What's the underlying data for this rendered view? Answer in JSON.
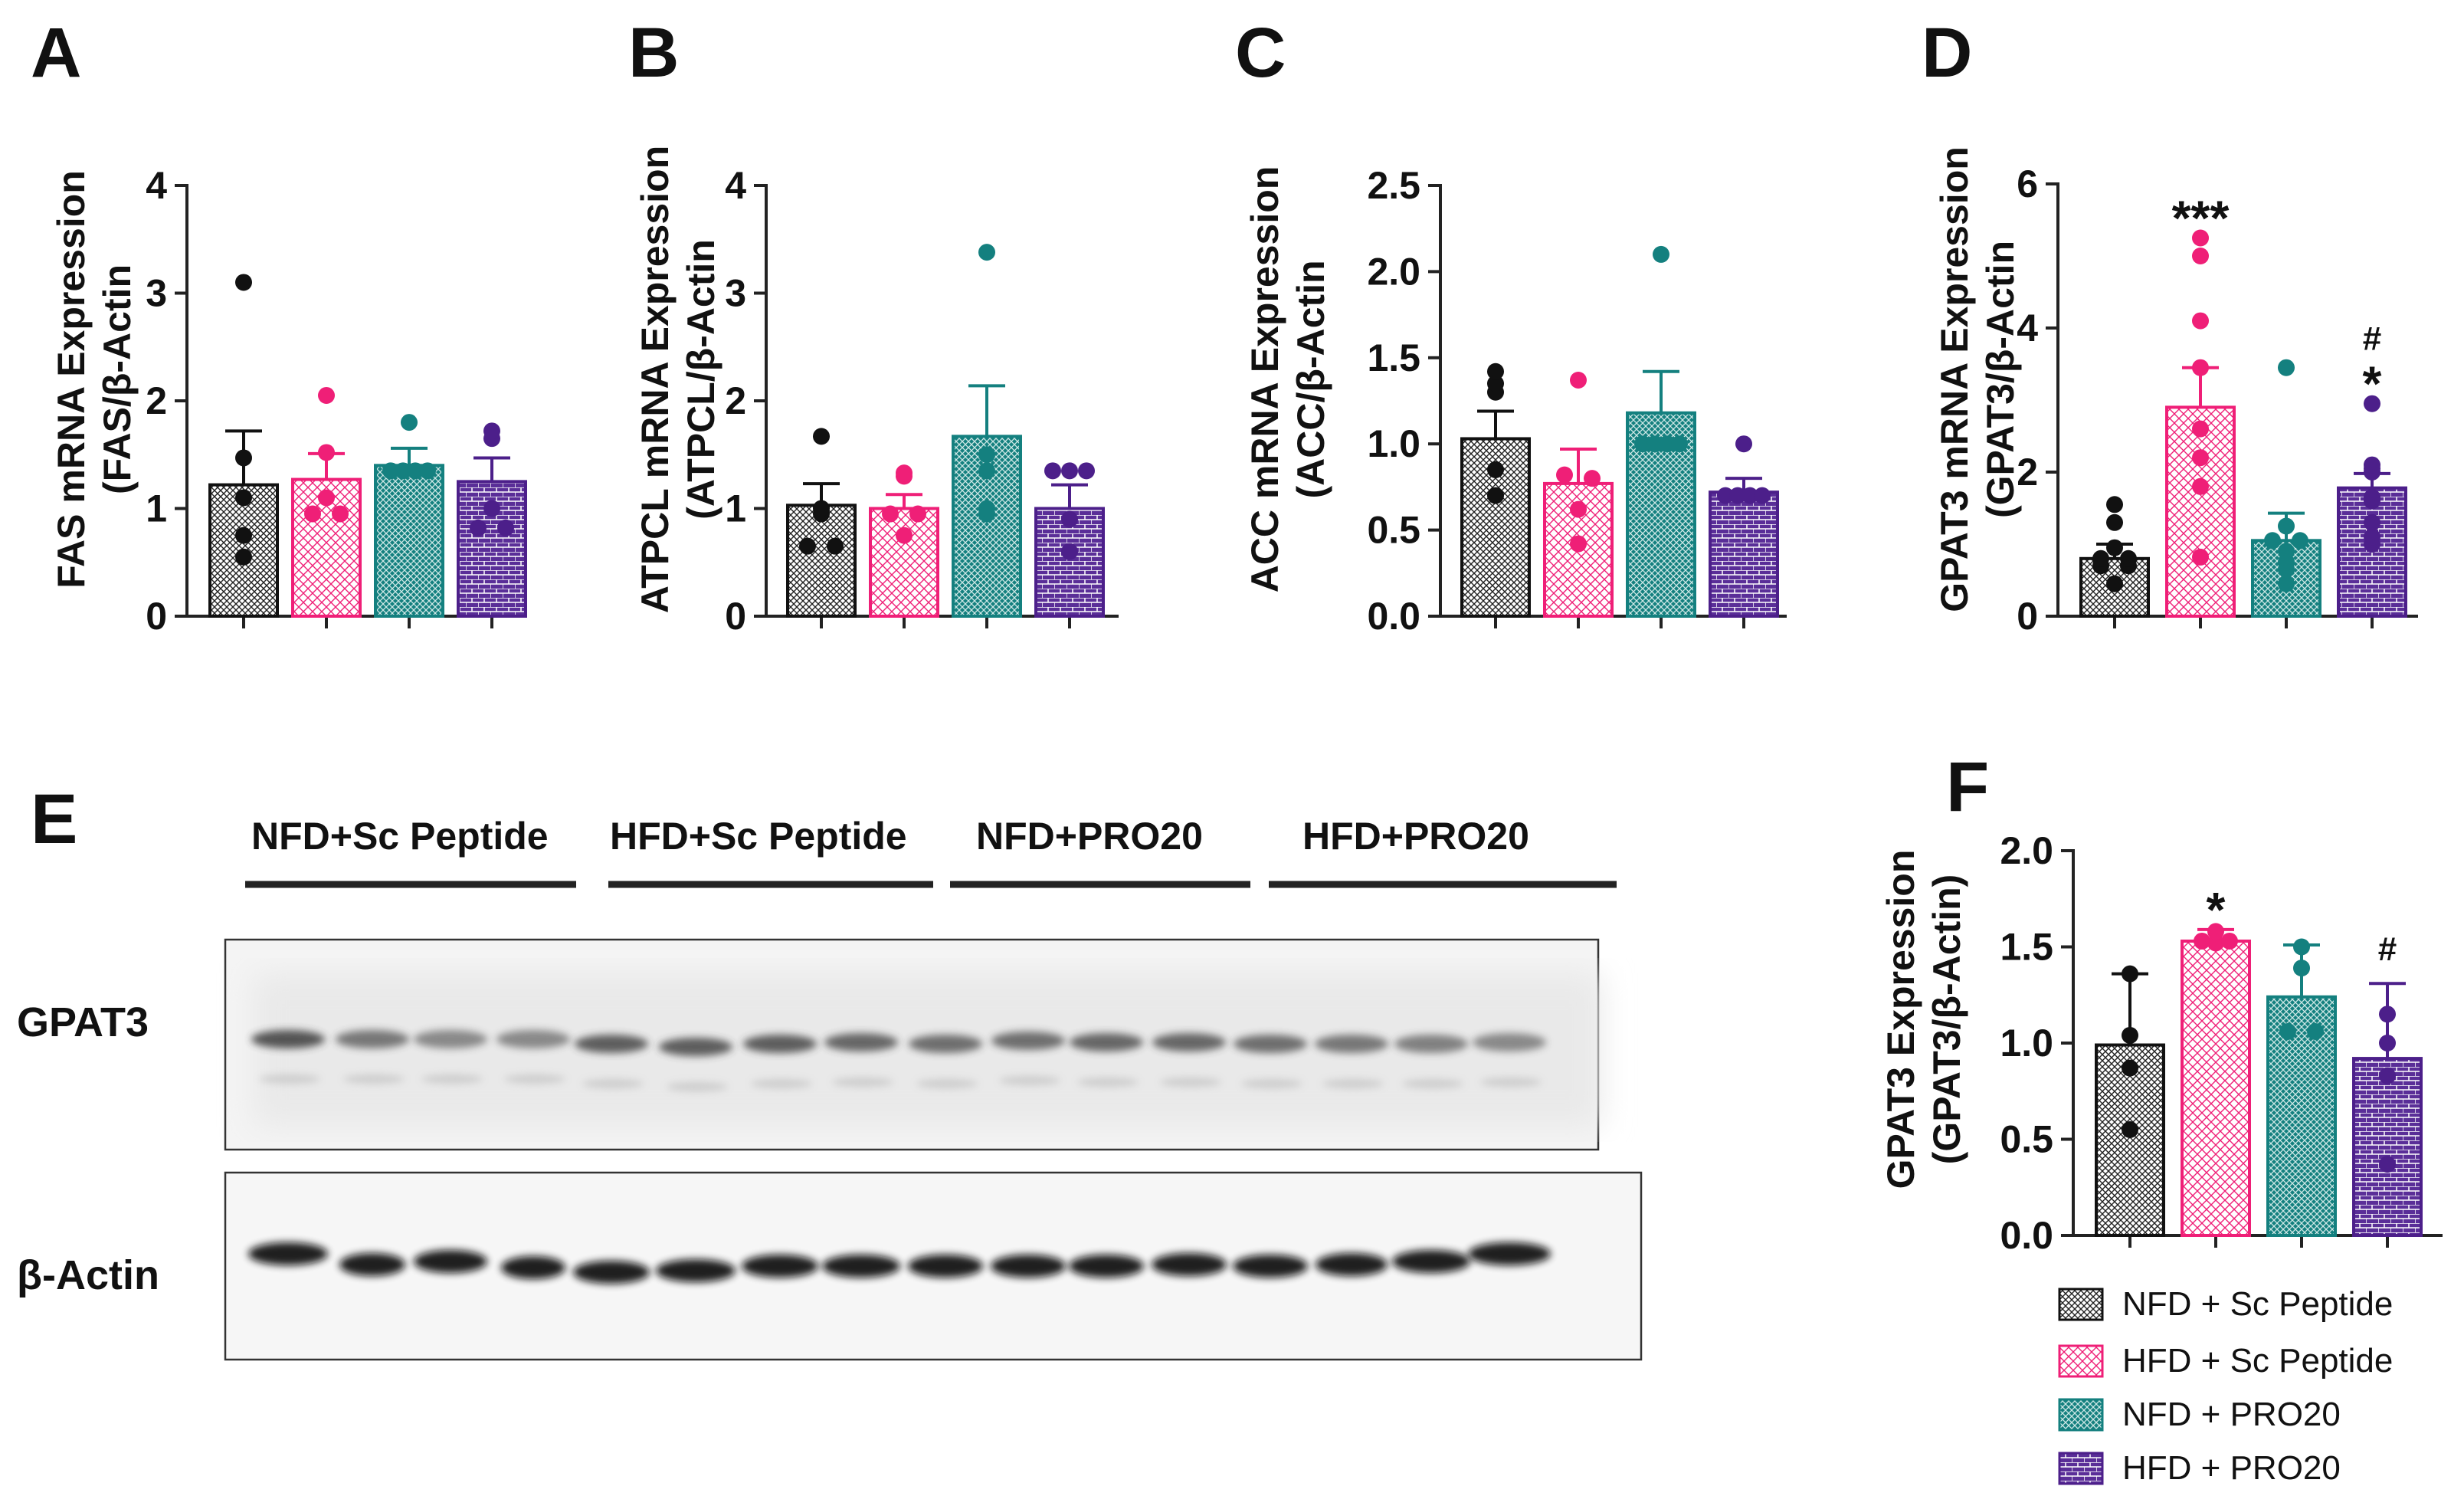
{
  "groups": [
    "NFD + Sc Peptide",
    "HFD + Sc Peptide",
    "NFD + PRO20",
    "HFD + PRO20"
  ],
  "colors": {
    "NFD_Sc": "#111111",
    "HFD_Sc": "#ef1f77",
    "NFD_PRO20": "#14807f",
    "HFD_PRO20": "#4c1f8a"
  },
  "panels": {
    "A": {
      "letter": "A",
      "ylabel1": "FAS mRNA Expression",
      "ylabel2": "(FAS/β-Actin"
    },
    "B": {
      "letter": "B",
      "ylabel1": "ATPCL mRNA Expression",
      "ylabel2": "(ATPCL/β-Actin"
    },
    "C": {
      "letter": "C",
      "ylabel1": "ACC mRNA Expression",
      "ylabel2": "(ACC/β-Actin"
    },
    "D": {
      "letter": "D",
      "ylabel1": "GPAT3 mRNA Expression",
      "ylabel2": "(GPAT3/β-Actin"
    },
    "E": {
      "letter": "E"
    },
    "F": {
      "letter": "F",
      "ylabel1": "GPAT3 Expression",
      "ylabel2": "(GPAT3/β-Actin)"
    }
  },
  "blot": {
    "lane_groups": [
      "NFD+Sc Peptide",
      "HFD+Sc Peptide",
      "NFD+PRO20",
      "HFD+PRO20"
    ],
    "rows": [
      "GPAT3",
      "β-Actin"
    ]
  },
  "chart_data": [
    {
      "type": "bar",
      "panel": "A",
      "ylabel": "FAS mRNA Expression (FAS/β-Actin",
      "ylim": [
        0,
        4
      ],
      "yticks": [
        "0",
        "1",
        "2",
        "3",
        "4"
      ],
      "categories": [
        "NFD + Sc Peptide",
        "HFD + Sc Peptide",
        "NFD + PRO20",
        "HFD + PRO20"
      ],
      "means": [
        1.22,
        1.27,
        1.4,
        1.25
      ],
      "sem": [
        0.5,
        0.24,
        0.16,
        0.22
      ],
      "points": [
        [
          3.1,
          1.47,
          1.1,
          0.75,
          0.55
        ],
        [
          2.05,
          1.52,
          1.1,
          0.95,
          0.95
        ],
        [
          1.8,
          1.35,
          1.35,
          1.35,
          1.35
        ],
        [
          1.72,
          1.65,
          1.0,
          0.82,
          0.82
        ]
      ],
      "annotations": [
        "",
        "",
        "",
        ""
      ]
    },
    {
      "type": "bar",
      "panel": "B",
      "ylabel": "ATPCL mRNA Expression (ATPCL/β-Actin",
      "ylim": [
        0,
        4
      ],
      "yticks": [
        "0",
        "1",
        "2",
        "3",
        "4"
      ],
      "categories": [
        "NFD + Sc Peptide",
        "HFD + Sc Peptide",
        "NFD + PRO20",
        "HFD + PRO20"
      ],
      "means": [
        1.03,
        1.0,
        1.67,
        1.0
      ],
      "sem": [
        0.2,
        0.13,
        0.47,
        0.22
      ],
      "points": [
        [
          1.67,
          1.0,
          0.95,
          0.65,
          0.65
        ],
        [
          1.33,
          1.3,
          0.95,
          0.95,
          0.75
        ],
        [
          3.38,
          1.5,
          1.35,
          1.0,
          0.95
        ],
        [
          1.35,
          1.35,
          1.35,
          0.9,
          0.6
        ]
      ],
      "annotations": [
        "",
        "",
        "",
        ""
      ]
    },
    {
      "type": "bar",
      "panel": "C",
      "ylabel": "ACC mRNA Expression (ACC/β-Actin",
      "ylim": [
        0,
        2.5
      ],
      "yticks": [
        "0.0",
        "0.5",
        "1.0",
        "1.5",
        "2.0",
        "2.5"
      ],
      "categories": [
        "NFD + Sc Peptide",
        "HFD + Sc Peptide",
        "NFD + PRO20",
        "HFD + PRO20"
      ],
      "means": [
        1.03,
        0.77,
        1.18,
        0.72
      ],
      "sem": [
        0.16,
        0.2,
        0.24,
        0.08
      ],
      "points": [
        [
          1.42,
          1.35,
          1.3,
          0.85,
          0.7
        ],
        [
          1.37,
          0.82,
          0.8,
          0.62,
          0.42
        ],
        [
          2.1,
          1.0,
          1.0,
          1.0,
          1.0
        ],
        [
          1.0,
          0.7,
          0.7,
          0.7,
          0.7
        ]
      ],
      "annotations": [
        "",
        "",
        "",
        ""
      ]
    },
    {
      "type": "bar",
      "panel": "D",
      "ylabel": "GPAT3 mRNA Expression (GPAT3/β-Actin",
      "ylim": [
        0,
        6
      ],
      "yticks": [
        "0",
        "2",
        "4",
        "6"
      ],
      "categories": [
        "NFD + Sc Peptide",
        "HFD + Sc Peptide",
        "NFD + PRO20",
        "HFD + PRO20"
      ],
      "means": [
        0.8,
        2.9,
        1.05,
        1.78
      ],
      "sem": [
        0.2,
        0.55,
        0.38,
        0.2
      ],
      "points": [
        [
          1.55,
          1.3,
          0.95,
          0.8,
          0.8,
          0.7,
          0.7,
          0.45
        ],
        [
          5.25,
          5.0,
          4.1,
          3.45,
          2.6,
          2.2,
          1.8,
          0.82
        ],
        [
          3.45,
          1.25,
          1.05,
          1.05,
          0.9,
          0.75,
          0.65,
          0.45
        ],
        [
          2.95,
          2.1,
          2.0,
          2.05,
          1.65,
          1.6,
          1.3,
          1.0,
          1.1
        ]
      ],
      "annotations": [
        "",
        "***",
        "",
        "#\n*"
      ]
    },
    {
      "type": "bar",
      "panel": "F",
      "ylabel": "GPAT3 Expression (GPAT3/β-Actin)",
      "ylim": [
        0,
        2.0
      ],
      "yticks": [
        "0.0",
        "0.5",
        "1.0",
        "1.5",
        "2.0"
      ],
      "categories": [
        "NFD + Sc Peptide",
        "HFD + Sc Peptide",
        "NFD + PRO20",
        "HFD + PRO20"
      ],
      "means": [
        0.99,
        1.53,
        1.24,
        0.92
      ],
      "sem": [
        0.37,
        0.06,
        0.27,
        0.39
      ],
      "points": [
        [
          1.36,
          1.04,
          0.87,
          0.55
        ],
        [
          1.53,
          1.53,
          1.58,
          1.52
        ],
        [
          1.5,
          1.39,
          1.06,
          1.06
        ],
        [
          1.15,
          1.0,
          0.83,
          0.37
        ]
      ],
      "annotations": [
        "",
        "*",
        "",
        "#"
      ]
    }
  ]
}
